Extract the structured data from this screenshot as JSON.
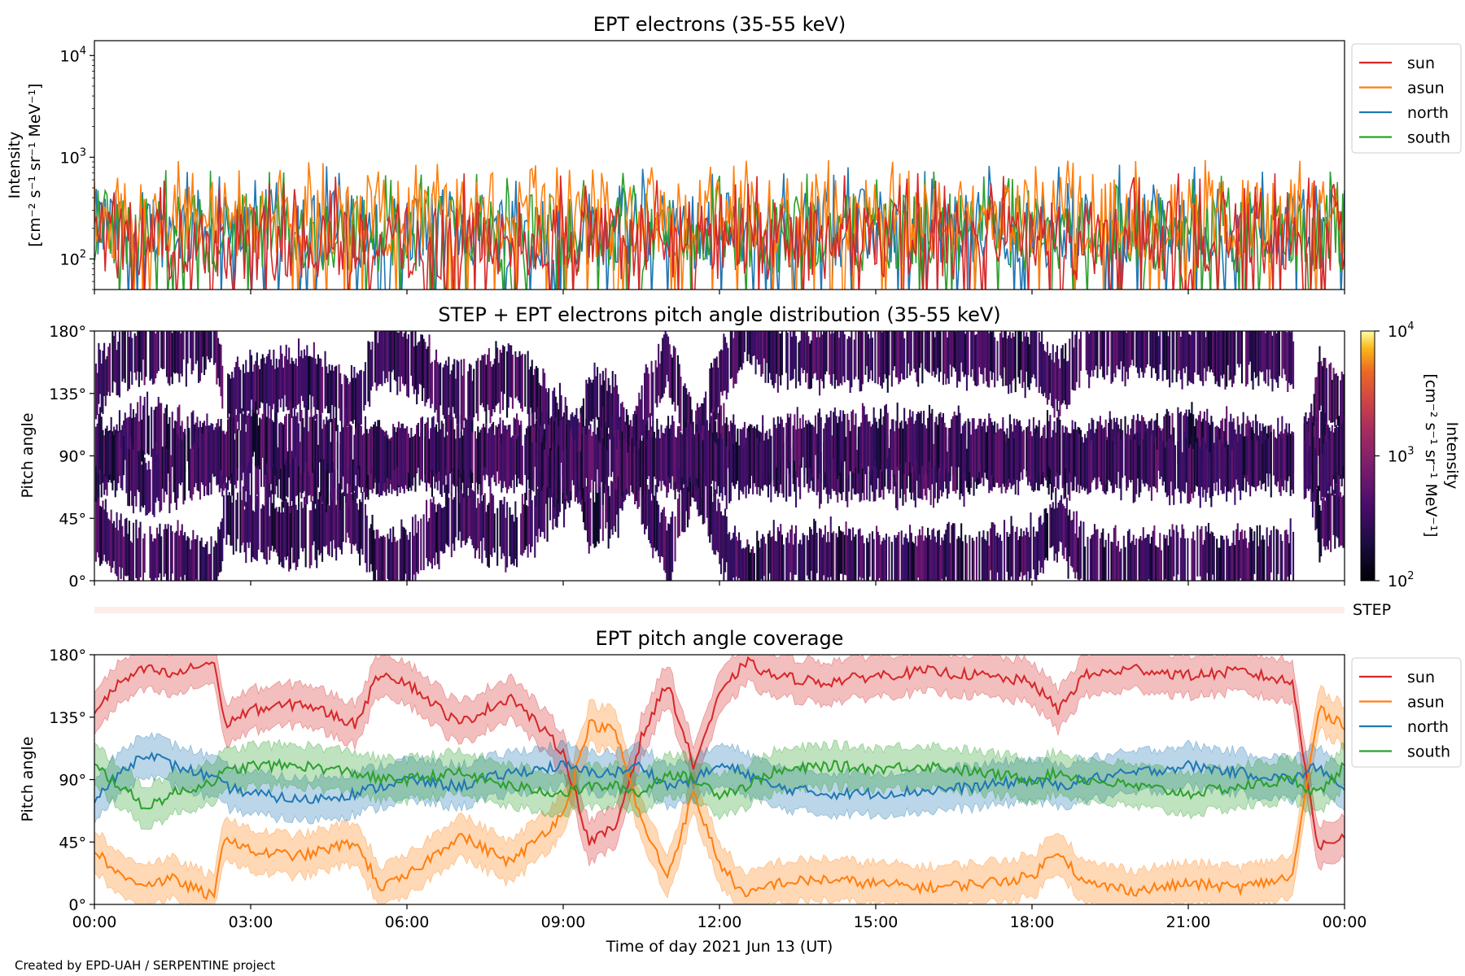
{
  "credit": "Created by EPD-UAH / SERPENTINE project",
  "colors": {
    "sun": "#d62728",
    "asun": "#ff7f0e",
    "north": "#1f77b4",
    "south": "#2ca02c",
    "step_band": "#fdeee8"
  },
  "step_label": "STEP",
  "xlabel": "Time of day 2021 Jun 13 (UT)",
  "time_ticks": [
    "00:00",
    "03:00",
    "06:00",
    "09:00",
    "12:00",
    "15:00",
    "18:00",
    "21:00",
    "00:00"
  ],
  "chart_data": [
    {
      "type": "line",
      "title": "EPT electrons (35-55 keV)",
      "ylabel": "Intensity",
      "yunit": "[cm⁻² s⁻¹ sr⁻¹ MeV⁻¹]",
      "yscale": "log",
      "ylim": [
        50,
        14000
      ],
      "ytick_base": "10",
      "ytick_exponents": [
        "2",
        "3",
        "4"
      ],
      "xlim_hours": [
        0,
        24
      ],
      "legend": {
        "placement": "outside-right",
        "entries": [
          "sun",
          "asun",
          "north",
          "south"
        ]
      },
      "series": [
        {
          "name": "sun",
          "typical": 150,
          "peak_max": 700
        },
        {
          "name": "asun",
          "typical": 250,
          "peak_max": 950
        },
        {
          "name": "north",
          "typical": 200,
          "peak_max": 850
        },
        {
          "name": "south",
          "typical": 180,
          "peak_max": 750
        }
      ]
    },
    {
      "type": "heatmap",
      "title": "STEP + EPT electrons pitch angle distribution (35-55 keV)",
      "ylabel": "Pitch angle",
      "yticks": [
        "0°",
        "45°",
        "90°",
        "135°",
        "180°"
      ],
      "ylim": [
        0,
        180
      ],
      "xlim_hours": [
        0,
        24
      ],
      "colorbar": {
        "label": "Intensity",
        "unit": "[cm⁻² s⁻¹ sr⁻¹ MeV⁻¹]",
        "scale": "log",
        "range": [
          100,
          10000
        ],
        "tick_base": "10",
        "tick_exponents": [
          "2",
          "3",
          "4"
        ],
        "colormap": "inferno"
      },
      "typical_intensity": 250
    },
    {
      "type": "line",
      "title": "EPT pitch angle coverage",
      "ylabel": "Pitch angle",
      "yticks": [
        "0°",
        "45°",
        "90°",
        "135°",
        "180°"
      ],
      "ylim": [
        0,
        180
      ],
      "xlim_hours": [
        0,
        24
      ],
      "legend": {
        "placement": "outside-right",
        "entries": [
          "sun",
          "asun",
          "north",
          "south"
        ]
      },
      "x_hours": [
        0,
        0.5,
        1,
        1.5,
        2,
        2.3,
        2.5,
        3,
        4,
        5,
        5.5,
        6,
        7,
        8,
        9,
        9.5,
        10,
        10.5,
        11,
        11.5,
        12,
        12.5,
        13,
        14,
        15,
        16,
        17,
        18,
        18.5,
        19,
        20,
        21,
        22,
        23,
        23.5,
        24
      ],
      "series": [
        {
          "name": "sun",
          "values": [
            140,
            160,
            170,
            165,
            172,
            175,
            130,
            140,
            145,
            130,
            168,
            160,
            130,
            150,
            110,
            45,
            55,
            120,
            160,
            100,
            150,
            175,
            165,
            160,
            165,
            168,
            165,
            160,
            140,
            165,
            170,
            165,
            168,
            160,
            40,
            50
          ],
          "band_halfwidth": 15
        },
        {
          "name": "asun",
          "values": [
            40,
            20,
            15,
            18,
            10,
            5,
            50,
            38,
            35,
            45,
            12,
            20,
            50,
            30,
            65,
            130,
            125,
            60,
            20,
            80,
            30,
            5,
            15,
            18,
            15,
            12,
            15,
            20,
            40,
            15,
            10,
            15,
            12,
            20,
            140,
            130
          ],
          "band_halfwidth": 15
        },
        {
          "name": "north",
          "values": [
            75,
            95,
            110,
            100,
            95,
            90,
            85,
            80,
            75,
            80,
            85,
            90,
            85,
            95,
            100,
            95,
            95,
            100,
            85,
            90,
            100,
            95,
            85,
            80,
            80,
            82,
            85,
            90,
            85,
            90,
            95,
            100,
            95,
            90,
            100,
            80
          ],
          "band_halfwidth": 15
        },
        {
          "name": "south",
          "values": [
            100,
            85,
            70,
            80,
            85,
            90,
            95,
            100,
            100,
            95,
            90,
            90,
            95,
            85,
            80,
            85,
            85,
            80,
            95,
            90,
            80,
            85,
            95,
            100,
            98,
            100,
            95,
            90,
            95,
            90,
            85,
            80,
            85,
            90,
            80,
            100
          ],
          "band_halfwidth": 15
        }
      ]
    }
  ]
}
